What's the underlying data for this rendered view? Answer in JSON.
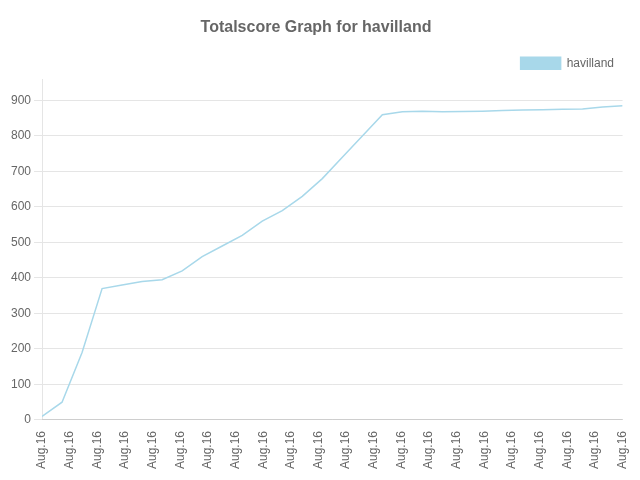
{
  "chart_data": {
    "type": "line",
    "title": "Totalscore Graph for havilland",
    "x": [
      0,
      1,
      2,
      3,
      4,
      5,
      6,
      7,
      8,
      9,
      10,
      11,
      12,
      13,
      14,
      15,
      16,
      17,
      18,
      19,
      20,
      21,
      22,
      23,
      24,
      25,
      26,
      27,
      28,
      29
    ],
    "series": [
      {
        "name": "havilland",
        "color": "#a8d8ea",
        "values": [
          10,
          50,
          190,
          370,
          380,
          390,
          395,
          420,
          460,
          490,
          520,
          560,
          590,
          630,
          680,
          740,
          800,
          860,
          868,
          870,
          868,
          869,
          870,
          872,
          873,
          874,
          875,
          876,
          882,
          885
        ]
      }
    ],
    "xlim": [
      0,
      29
    ],
    "xticks": [
      {
        "value": 0,
        "label": "Aug.16"
      },
      {
        "value": 1.380952380952381,
        "label": "Aug.16"
      },
      {
        "value": 2.761904761904762,
        "label": "Aug.16"
      },
      {
        "value": 4.142857142857143,
        "label": "Aug.16"
      },
      {
        "value": 5.523809523809524,
        "label": "Aug.16"
      },
      {
        "value": 6.904761904761905,
        "label": "Aug.16"
      },
      {
        "value": 8.285714285714286,
        "label": "Aug.16"
      },
      {
        "value": 9.666666666666666,
        "label": "Aug.16"
      },
      {
        "value": 11.047619047619047,
        "label": "Aug.16"
      },
      {
        "value": 12.428571428571429,
        "label": "Aug.16"
      },
      {
        "value": 13.80952380952381,
        "label": "Aug.16"
      },
      {
        "value": 15.19047619047619,
        "label": "Aug.16"
      },
      {
        "value": 16.571428571428573,
        "label": "Aug.16"
      },
      {
        "value": 17.952380952380953,
        "label": "Aug.16"
      },
      {
        "value": 19.333333333333332,
        "label": "Aug.16"
      },
      {
        "value": 20.714285714285715,
        "label": "Aug.16"
      },
      {
        "value": 22.095238095238095,
        "label": "Aug.16"
      },
      {
        "value": 23.476190476190474,
        "label": "Aug.16"
      },
      {
        "value": 24.857142857142858,
        "label": "Aug.16"
      },
      {
        "value": 26.238095238095237,
        "label": "Aug.16"
      },
      {
        "value": 27.61904761904762,
        "label": "Aug.16"
      },
      {
        "value": 29,
        "label": "Aug.16"
      }
    ],
    "ylim": [
      0,
      960
    ],
    "yticks": [
      0,
      100,
      200,
      300,
      400,
      500,
      600,
      700,
      800,
      900
    ],
    "grid": "y",
    "legend": "upper right"
  }
}
